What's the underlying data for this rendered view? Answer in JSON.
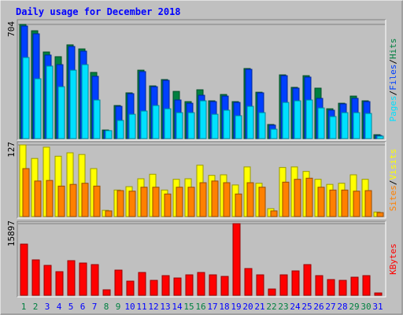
{
  "title": "Daily usage for December 2018",
  "chart_data": [
    {
      "type": "bar",
      "ylim": [
        0,
        704
      ],
      "yticks": [
        704
      ],
      "separator": "/",
      "series": [
        {
          "name": "Hits",
          "color": "#008040",
          "values": [
            704,
            665,
            534,
            505,
            578,
            553,
            408,
            53,
            204,
            282,
            422,
            325,
            364,
            291,
            228,
            301,
            233,
            272,
            228,
            432,
            286,
            87,
            393,
            316,
            388,
            311,
            184,
            218,
            262,
            233,
            24
          ]
        },
        {
          "name": "Files",
          "color": "#0040ff",
          "values": [
            694,
            646,
            515,
            456,
            568,
            539,
            384,
            49,
            199,
            277,
            413,
            320,
            359,
            238,
            218,
            267,
            228,
            262,
            223,
            427,
            282,
            83,
            388,
            311,
            379,
            248,
            175,
            214,
            248,
            228,
            19
          ]
        },
        {
          "name": "Pages",
          "color": "#00e0ff",
          "values": [
            500,
            369,
            447,
            320,
            422,
            456,
            238,
            49,
            112,
            150,
            170,
            204,
            184,
            160,
            160,
            233,
            150,
            175,
            141,
            199,
            160,
            58,
            223,
            233,
            238,
            189,
            136,
            160,
            160,
            155,
            15
          ]
        }
      ]
    },
    {
      "type": "bar",
      "ylim": [
        0,
        127
      ],
      "yticks": [
        127
      ],
      "separator": "/",
      "series": [
        {
          "name": "Visits",
          "color": "#ffff00",
          "values": [
            127,
            103,
            123,
            107,
            113,
            110,
            85,
            11,
            47,
            53,
            67,
            75,
            47,
            66,
            67,
            91,
            73,
            74,
            56,
            88,
            59,
            14,
            87,
            88,
            80,
            66,
            57,
            59,
            74,
            66,
            8
          ]
        },
        {
          "name": "Sites",
          "color": "#ff8000",
          "values": [
            85,
            63,
            64,
            54,
            57,
            59,
            54,
            10,
            46,
            45,
            52,
            52,
            40,
            52,
            52,
            60,
            63,
            60,
            40,
            60,
            52,
            10,
            61,
            66,
            68,
            52,
            47,
            47,
            45,
            46,
            7
          ]
        }
      ]
    },
    {
      "type": "bar",
      "ylim": [
        0,
        15897
      ],
      "yticks": [
        15897
      ],
      "categories": [
        "1",
        "2",
        "3",
        "4",
        "5",
        "6",
        "7",
        "8",
        "9",
        "10",
        "11",
        "12",
        "13",
        "14",
        "15",
        "16",
        "17",
        "18",
        "19",
        "20",
        "21",
        "22",
        "23",
        "24",
        "25",
        "26",
        "27",
        "28",
        "29",
        "30",
        "31"
      ],
      "category_colors": [
        "#008040",
        "#008040",
        "#0000ff",
        "#0000ff",
        "#0000ff",
        "#0000ff",
        "#0000ff",
        "#008040",
        "#008040",
        "#0000ff",
        "#0000ff",
        "#0000ff",
        "#0000ff",
        "#0000ff",
        "#008040",
        "#008040",
        "#0000ff",
        "#0000ff",
        "#0000ff",
        "#0000ff",
        "#0000ff",
        "#008040",
        "#008040",
        "#0000ff",
        "#0000ff",
        "#0000ff",
        "#0000ff",
        "#0000ff",
        "#008040",
        "#008040",
        "#0000ff"
      ],
      "series": [
        {
          "name": "KBytes",
          "color": "#ff0000",
          "values": [
            11356,
            7862,
            6639,
            5241,
            7687,
            7163,
            6813,
            1223,
            5590,
            3145,
            5066,
            3319,
            4367,
            3843,
            4542,
            5066,
            4542,
            4193,
            15897,
            5940,
            4542,
            1398,
            4542,
            5416,
            6813,
            4367,
            3494,
            3319,
            4018,
            4367,
            524
          ]
        }
      ]
    }
  ]
}
